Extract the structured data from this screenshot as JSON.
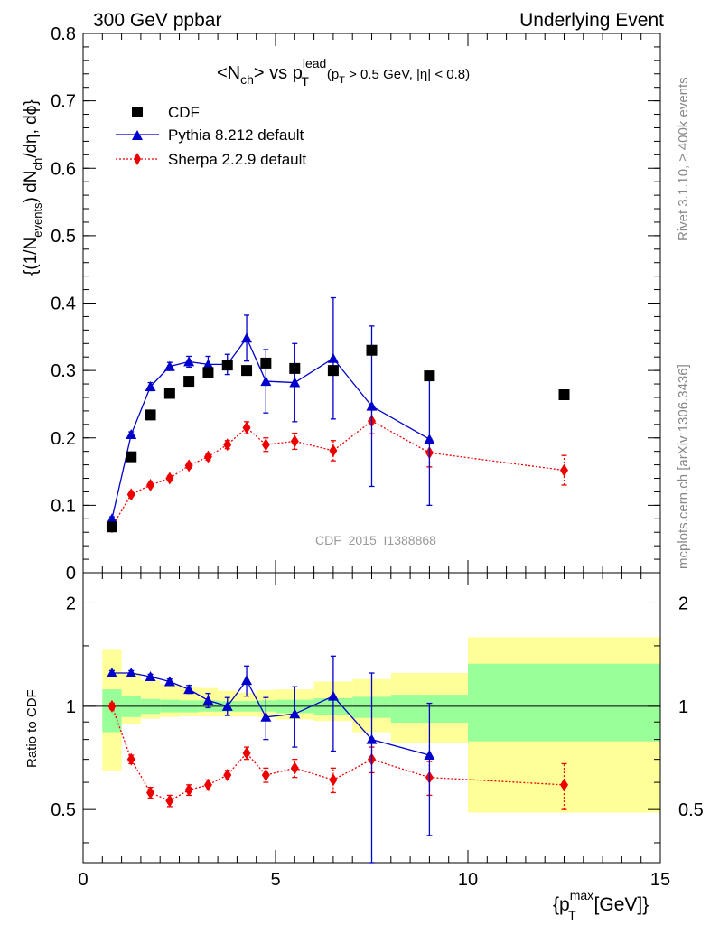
{
  "header": {
    "left": "300 GeV ppbar",
    "right": "Underlying Event"
  },
  "side_text": {
    "rivet": "Rivet 3.1.10, ≥ 400k events",
    "mcplots": "mcplots.cern.ch [arXiv:1306.3436]"
  },
  "watermark": "CDF_2015_I1388868",
  "plot_title": {
    "lt": "<N",
    "ch": "ch",
    "gt_vs": "> vs p",
    "lead": "lead",
    "T": "T",
    "cut_open": "(p",
    "cut_T": "T",
    "cut_rest": " > 0.5 GeV, |η| < 0.8)"
  },
  "main_ylabel": {
    "p1": "{(1/N",
    "sub1": "events",
    "p2": ") dN",
    "sub2": "ch",
    "p3": "/dη, dϕ}"
  },
  "ratio_ylabel": "Ratio to CDF",
  "xlabel": {
    "open": "{p",
    "sup": "max",
    "sub": "T",
    "rest": " [GeV]}"
  },
  "legend": [
    {
      "label": "CDF",
      "color": "#000000",
      "marker": "square",
      "line": "none"
    },
    {
      "label": "Pythia 8.212 default",
      "color": "#0000cc",
      "marker": "triangle",
      "line": "solid"
    },
    {
      "label": "Sherpa 2.2.9 default",
      "color": "#ee0000",
      "marker": "diamond",
      "line": "dotted"
    }
  ],
  "chart_data": [
    {
      "type": "scatter",
      "panel": "main",
      "xlim": [
        0,
        15
      ],
      "ylim": [
        0,
        0.8
      ],
      "xticks": [
        0,
        5,
        10,
        15
      ],
      "yticks": [
        "0",
        "0.1",
        "0.2",
        "0.3",
        "0.4",
        "0.5",
        "0.6",
        "0.7",
        "0.8"
      ],
      "legend_position": "top-left",
      "series": [
        {
          "name": "CDF",
          "x": [
            0.75,
            1.25,
            1.75,
            2.25,
            2.75,
            3.25,
            3.75,
            4.25,
            4.75,
            5.5,
            6.5,
            7.5,
            9.0,
            12.5
          ],
          "y": [
            0.068,
            0.172,
            0.234,
            0.266,
            0.284,
            0.297,
            0.308,
            0.3,
            0.311,
            0.303,
            0.3,
            0.33,
            0.292,
            0.264
          ]
        },
        {
          "name": "Pythia 8.212 default",
          "x": [
            0.75,
            1.25,
            1.75,
            2.25,
            2.75,
            3.25,
            3.75,
            4.25,
            4.75,
            5.5,
            6.5,
            7.5,
            9.0
          ],
          "y": [
            0.08,
            0.205,
            0.276,
            0.306,
            0.313,
            0.309,
            0.309,
            0.348,
            0.284,
            0.282,
            0.318,
            0.247,
            0.198
          ],
          "err": [
            0.003,
            0.004,
            0.006,
            0.006,
            0.008,
            0.012,
            0.015,
            0.034,
            0.047,
            0.058,
            0.09,
            0.119,
            0.098
          ]
        },
        {
          "name": "Sherpa 2.2.9 default",
          "x": [
            0.75,
            1.25,
            1.75,
            2.25,
            2.75,
            3.25,
            3.75,
            4.25,
            4.75,
            5.5,
            6.5,
            7.5,
            9.0,
            12.5
          ],
          "y": [
            0.068,
            0.116,
            0.13,
            0.14,
            0.159,
            0.172,
            0.19,
            0.215,
            0.19,
            0.195,
            0.181,
            0.225,
            0.178,
            0.152
          ],
          "err": [
            0.002,
            0.003,
            0.003,
            0.004,
            0.004,
            0.005,
            0.006,
            0.009,
            0.01,
            0.012,
            0.015,
            0.019,
            0.021,
            0.022
          ]
        }
      ]
    },
    {
      "type": "scatter",
      "panel": "ratio",
      "xlim": [
        0,
        15
      ],
      "ylim": [
        0.35,
        2.45
      ],
      "log_y": true,
      "yticks": [
        0.5,
        1,
        2
      ],
      "ytick_labels": [
        "0.5",
        "1",
        "2"
      ],
      "ylabel": "Ratio to CDF",
      "reference_line": 1,
      "bands": {
        "x_edges": [
          0.5,
          1.0,
          1.5,
          2.0,
          2.5,
          3.0,
          3.5,
          4.0,
          4.5,
          5.0,
          6.0,
          7.0,
          8.0,
          10.0,
          15.0
        ],
        "stat": {
          "lo": [
            0.84,
            0.93,
            0.95,
            0.96,
            0.96,
            0.965,
            0.965,
            0.965,
            0.965,
            0.955,
            0.945,
            0.925,
            0.895,
            0.79
          ],
          "hi": [
            1.12,
            1.07,
            1.05,
            1.045,
            1.04,
            1.04,
            1.035,
            1.035,
            1.04,
            1.045,
            1.055,
            1.065,
            1.08,
            1.33
          ]
        },
        "total": {
          "lo": [
            0.65,
            0.89,
            0.92,
            0.93,
            0.935,
            0.935,
            0.935,
            0.935,
            0.93,
            0.915,
            0.905,
            0.84,
            0.78,
            0.49
          ],
          "hi": [
            1.46,
            1.25,
            1.19,
            1.16,
            1.14,
            1.13,
            1.11,
            1.095,
            1.115,
            1.12,
            1.18,
            1.2,
            1.25,
            1.59
          ]
        },
        "stat_color": "#99ff99",
        "total_color": "#ffff99"
      },
      "series": [
        {
          "name": "Pythia 8.212 default",
          "x": [
            0.75,
            1.25,
            1.75,
            2.25,
            2.75,
            3.25,
            3.75,
            4.25,
            4.75,
            5.5,
            6.5,
            7.5,
            9.0
          ],
          "y": [
            1.25,
            1.25,
            1.22,
            1.18,
            1.12,
            1.04,
            1.0,
            1.19,
            0.93,
            0.95,
            1.07,
            0.8,
            0.72
          ],
          "err": [
            0.02,
            0.02,
            0.02,
            0.02,
            0.03,
            0.05,
            0.06,
            0.12,
            0.13,
            0.19,
            0.33,
            0.45,
            0.3
          ]
        },
        {
          "name": "Sherpa 2.2.9 default",
          "x": [
            0.75,
            1.25,
            1.75,
            2.25,
            2.75,
            3.25,
            3.75,
            4.25,
            4.75,
            5.5,
            6.5,
            7.5,
            9.0,
            12.5
          ],
          "y": [
            1.0,
            0.7,
            0.56,
            0.53,
            0.57,
            0.59,
            0.63,
            0.73,
            0.63,
            0.66,
            0.61,
            0.7,
            0.62,
            0.59
          ],
          "err": [
            0.02,
            0.02,
            0.02,
            0.02,
            0.02,
            0.02,
            0.02,
            0.03,
            0.03,
            0.04,
            0.05,
            0.06,
            0.07,
            0.09
          ]
        }
      ]
    }
  ]
}
